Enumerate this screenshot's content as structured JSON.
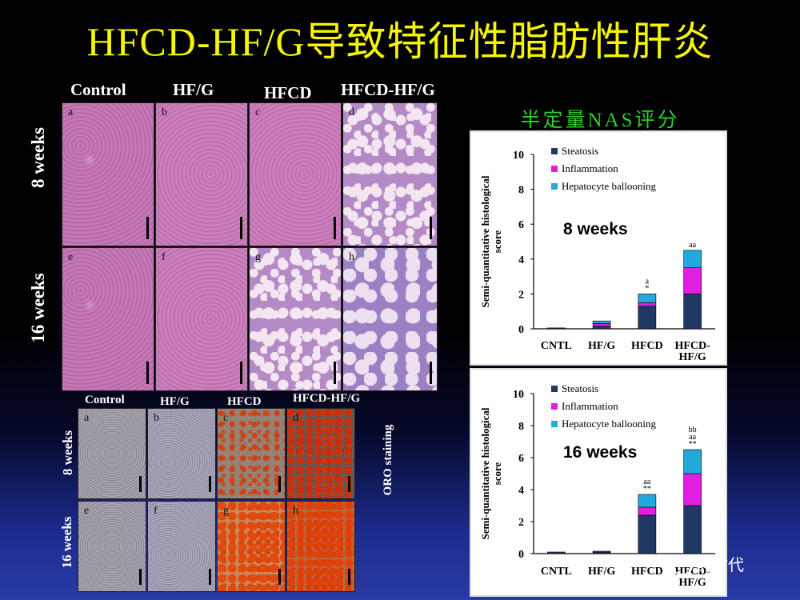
{
  "title": "HFCD-HF/G导致特征性脂肪性肝炎",
  "he_figure": {
    "columns": [
      "Control",
      "HF/G",
      "HFCD",
      "HFCD-HF/G"
    ],
    "rows": [
      "8 weeks",
      "16 weeks"
    ],
    "panels": [
      "a",
      "b",
      "c",
      "d",
      "e",
      "f",
      "g",
      "h"
    ]
  },
  "oro_figure": {
    "columns": [
      "Control",
      "HF/G",
      "HFCD",
      "HFCD-HF/G"
    ],
    "rows": [
      "8 weeks",
      "16 weeks"
    ],
    "panels": [
      "a",
      "b",
      "c",
      "d",
      "e",
      "f",
      "g",
      "h"
    ],
    "side_label": "ORO staining"
  },
  "nas_title": "半定量NAS评分",
  "watermark": "药时代",
  "colors": {
    "steatosis": "#1f3864",
    "inflammation": "#e020e0",
    "ballooning": "#22aadd",
    "title": "#f5f500",
    "nas_title": "#27d127"
  },
  "chart_data": [
    {
      "type": "bar",
      "stacked": true,
      "annotation": "8 weeks",
      "ylabel": "Semi-quantitative histological score",
      "categories": [
        "CNTL",
        "HF/G",
        "HFCD",
        "HFCD-HF/G"
      ],
      "category_lines": [
        [
          "CNTL"
        ],
        [
          "HF/G"
        ],
        [
          "HFCD"
        ],
        [
          "HFCD-",
          "HF/G"
        ]
      ],
      "ylim": [
        0,
        10
      ],
      "yticks": [
        0,
        2,
        4,
        6,
        8,
        10
      ],
      "series": [
        {
          "name": "Steatosis",
          "values": [
            0.05,
            0.15,
            1.3,
            2.0
          ]
        },
        {
          "name": "Inflammation",
          "values": [
            0.0,
            0.15,
            0.2,
            1.5
          ]
        },
        {
          "name": "Hepatocyte ballooning",
          "values": [
            0.0,
            0.15,
            0.5,
            1.0
          ]
        }
      ],
      "sig_labels": [
        [],
        [],
        [
          "a",
          "*"
        ],
        [
          "aa"
        ]
      ],
      "legend_position": "top-left"
    },
    {
      "type": "bar",
      "stacked": true,
      "annotation": "16 weeks",
      "ylabel": "Semi-quantitative histological score",
      "categories": [
        "CNTL",
        "HF/G",
        "HFCD",
        "HFCD-HF/G"
      ],
      "category_lines": [
        [
          "CNTL"
        ],
        [
          "HF/G"
        ],
        [
          "HFCD"
        ],
        [
          "HFCD-",
          "HF/G"
        ]
      ],
      "ylim": [
        0,
        10
      ],
      "yticks": [
        0,
        2,
        4,
        6,
        8,
        10
      ],
      "series": [
        {
          "name": "Steatosis",
          "values": [
            0.1,
            0.1,
            2.4,
            3.0
          ]
        },
        {
          "name": "Inflammation",
          "values": [
            0.0,
            0.05,
            0.5,
            2.0
          ]
        },
        {
          "name": "Hepatocyte ballooning",
          "values": [
            0.0,
            0.0,
            0.8,
            1.5
          ]
        }
      ],
      "sig_labels": [
        [],
        [],
        [
          "aa",
          "**"
        ],
        [
          "bb",
          "aa",
          "**"
        ]
      ],
      "legend_position": "top-left"
    }
  ]
}
